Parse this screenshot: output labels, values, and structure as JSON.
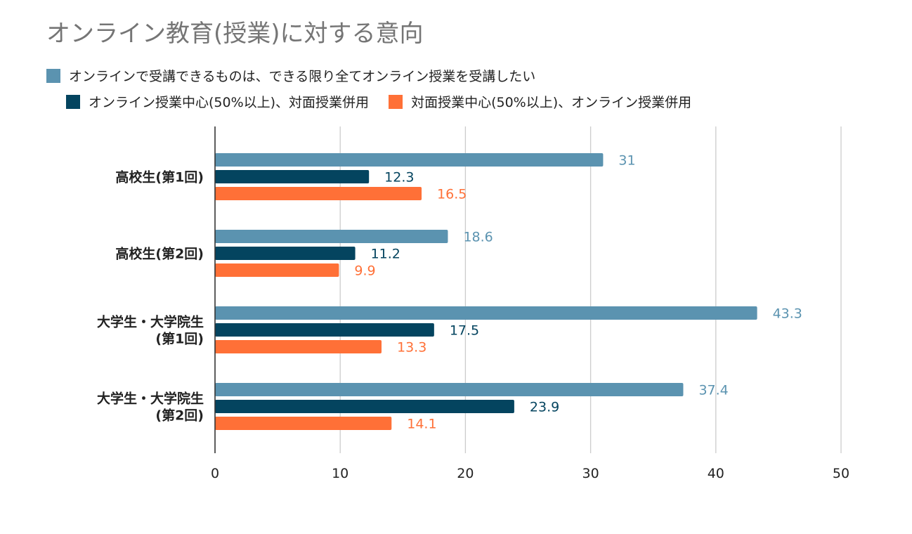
{
  "chart_data": {
    "type": "bar",
    "orientation": "horizontal",
    "title": "オンライン教育(授業)に対する意向",
    "categories": [
      [
        "高校生(第1回)"
      ],
      [
        "高校生(第2回)"
      ],
      [
        "大学生・大学院生",
        "(第1回)"
      ],
      [
        "大学生・大学院生",
        "(第2回)"
      ]
    ],
    "series": [
      {
        "name": "オンラインで受講できるものは、できる限り全てオンライン授業を受講したい",
        "color": "#5b93b0",
        "values": [
          31,
          18.6,
          43.3,
          37.4
        ]
      },
      {
        "name": "オンライン授業中心(50%以上)、対面授業併用",
        "color": "#04445f",
        "values": [
          12.3,
          11.2,
          17.5,
          23.9
        ]
      },
      {
        "name": "対面授業中心(50%以上)、オンライン授業併用",
        "color": "#ff7037",
        "values": [
          16.5,
          9.9,
          13.3,
          14.1
        ]
      }
    ],
    "value_labels": [
      [
        "31",
        "18.6",
        "43.3",
        "37.4"
      ],
      [
        "12.3",
        "11.2",
        "17.5",
        "23.9"
      ],
      [
        "16.5",
        "9.9",
        "13.3",
        "14.1"
      ]
    ],
    "xlim": [
      0,
      50
    ],
    "xticks": [
      "0",
      "10",
      "20",
      "30",
      "40",
      "50"
    ],
    "grid": true,
    "legend_position": "top"
  }
}
